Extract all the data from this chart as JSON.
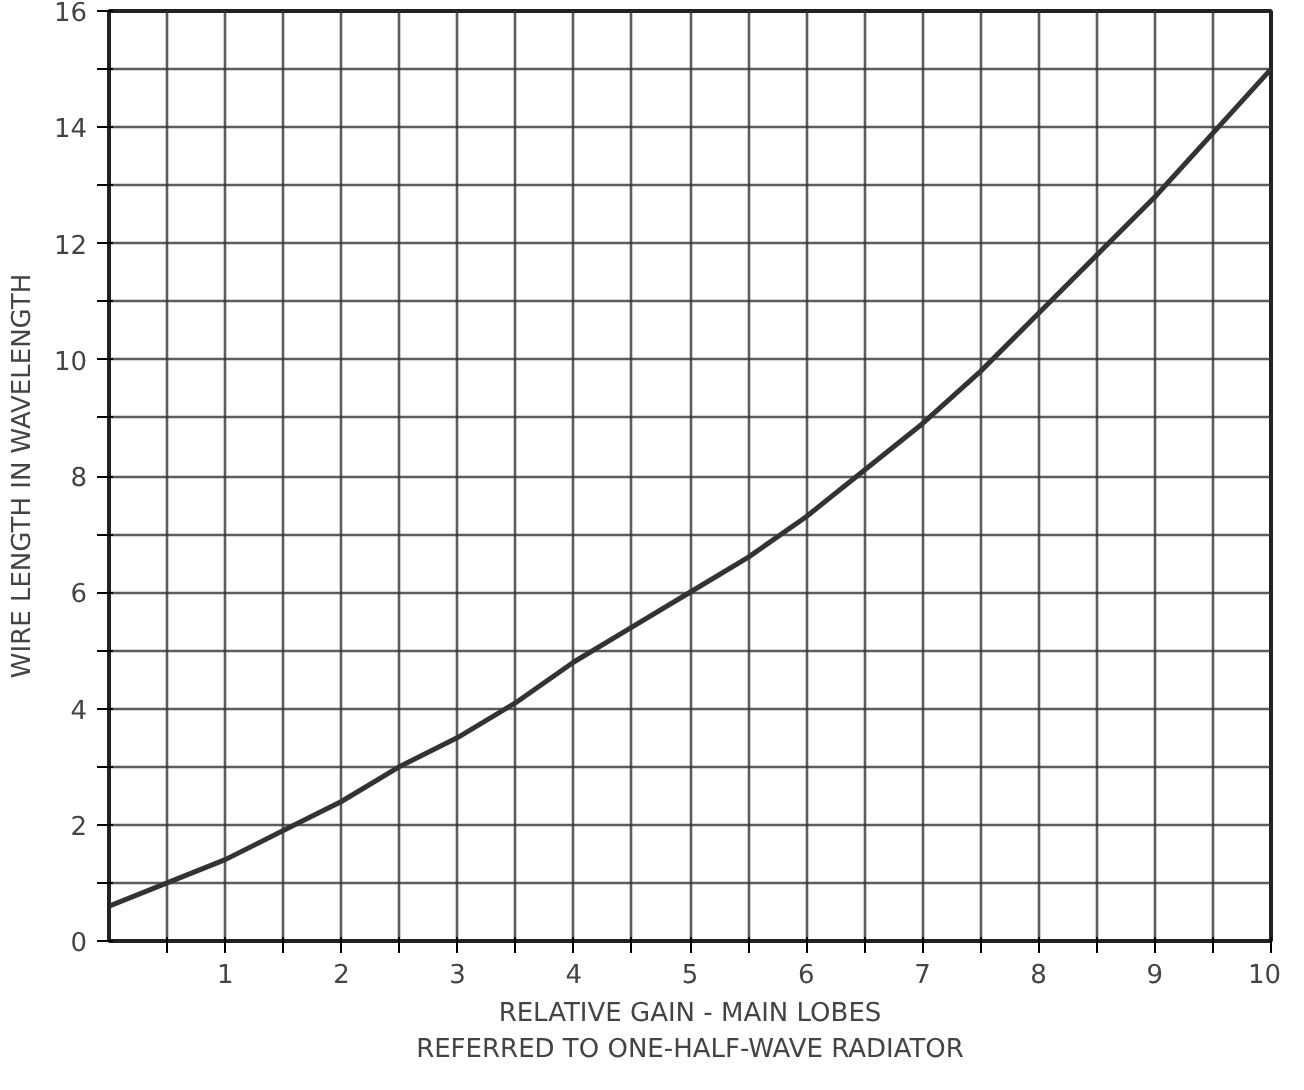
{
  "chart_data": {
    "type": "line",
    "xlabel": "RELATIVE GAIN - MAIN LOBES\nREFERRED TO ONE-HALF-WAVE RADIATOR",
    "ylabel": "WIRE LENGTH IN WAVELENGTH",
    "x": [
      0,
      0.5,
      1,
      1.5,
      2,
      2.5,
      3,
      3.5,
      4,
      4.5,
      5,
      5.5,
      6,
      6.5,
      7,
      7.5,
      8,
      8.5,
      9,
      9.5,
      10
    ],
    "series": [
      {
        "color": "#333333",
        "values": [
          0.6,
          1.0,
          1.4,
          1.9,
          2.4,
          3.0,
          3.5,
          4.1,
          4.8,
          5.4,
          6.0,
          6.6,
          7.3,
          8.1,
          8.9,
          9.8,
          10.8,
          11.8,
          12.8,
          13.9,
          15.0
        ]
      }
    ],
    "xlim": [
      0,
      10
    ],
    "ylim": [
      0,
      16
    ],
    "xticks": [
      {
        "value": 0.5,
        "label": null
      },
      1,
      {
        "value": 1.5,
        "label": null
      },
      2,
      {
        "value": 2.5,
        "label": null
      },
      3,
      {
        "value": 3.5,
        "label": null
      },
      4,
      {
        "value": 4.5,
        "label": null
      },
      5,
      {
        "value": 5.5,
        "label": null
      },
      6,
      {
        "value": 6.5,
        "label": null
      },
      7,
      {
        "value": 7.5,
        "label": null
      },
      8,
      {
        "value": 8.5,
        "label": null
      },
      9,
      {
        "value": 9.5,
        "label": null
      },
      10
    ],
    "yticks": [
      0,
      {
        "value": 1,
        "label": null
      },
      2,
      {
        "value": 3,
        "label": null
      },
      4,
      {
        "value": 5,
        "label": null
      },
      6,
      {
        "value": 7,
        "label": null
      },
      8,
      {
        "value": 9,
        "label": null
      },
      10,
      {
        "value": 11,
        "label": null
      },
      12,
      {
        "value": 13,
        "label": null
      },
      14,
      {
        "value": 15,
        "label": null
      },
      16
    ],
    "grid": true,
    "marker": "none",
    "line_style": "solid"
  }
}
